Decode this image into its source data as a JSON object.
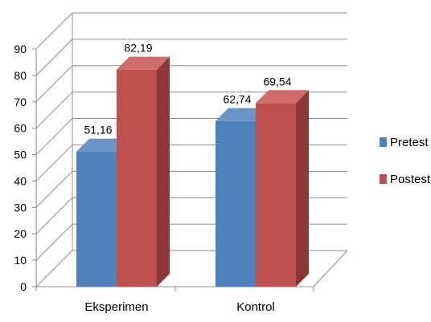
{
  "chart_data": {
    "type": "bar",
    "categories": [
      "Eksperimen",
      "Kontrol"
    ],
    "series": [
      {
        "name": "Pretest",
        "values": [
          51.16,
          62.74
        ],
        "labels": [
          "51,16",
          "62,74"
        ],
        "color": "#4F81BD",
        "side_color": "#385D8A",
        "top_color": "#6B94C8"
      },
      {
        "name": "Postest",
        "values": [
          82.19,
          69.54
        ],
        "labels": [
          "82,19",
          "69,54"
        ],
        "color": "#C0504D",
        "side_color": "#8C3836",
        "top_color": "#CF6B68"
      }
    ],
    "ylim": [
      0,
      90
    ],
    "yticks": [
      0,
      10,
      20,
      30,
      40,
      50,
      60,
      70,
      80,
      90
    ],
    "grid": true,
    "legend_position": "right",
    "style": "3d-clustered-column"
  }
}
